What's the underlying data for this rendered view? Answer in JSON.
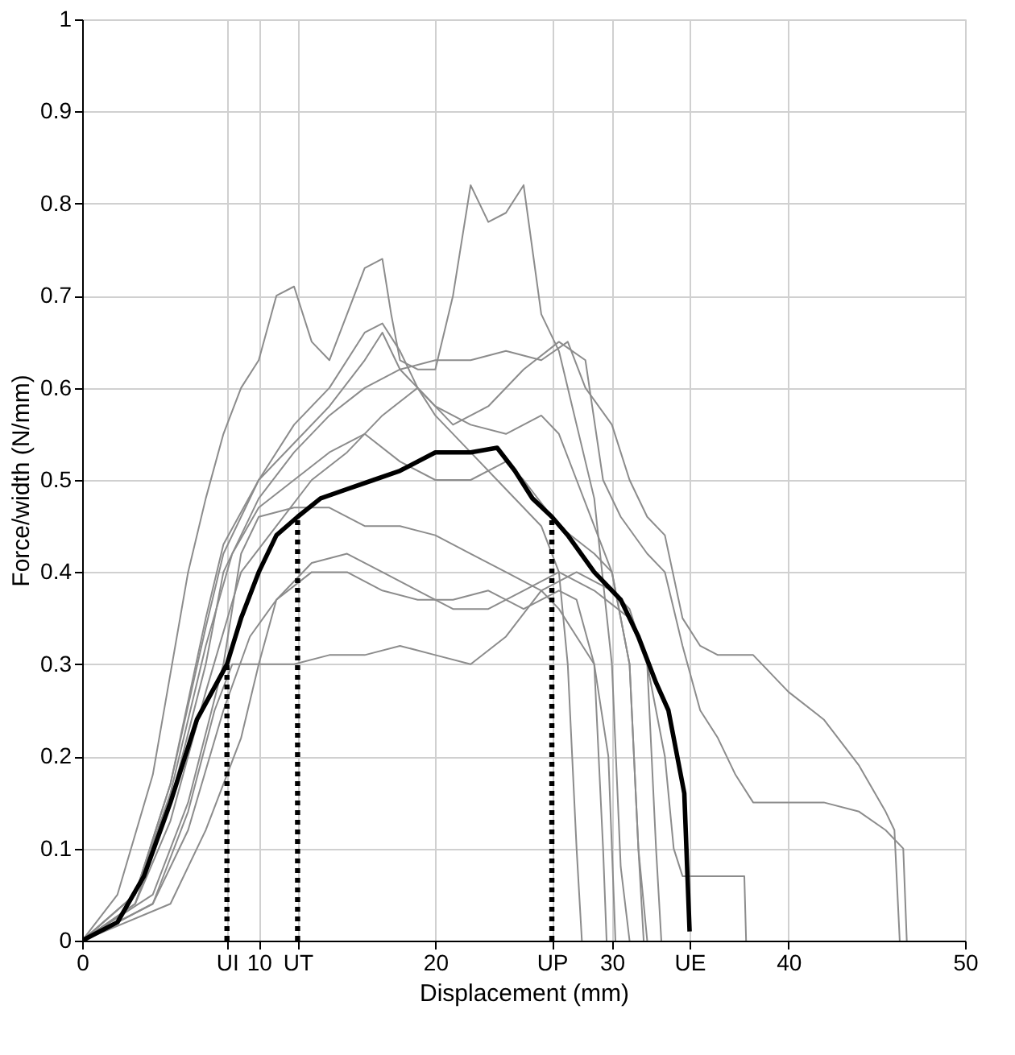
{
  "chart_data": {
    "type": "line",
    "xlabel": "Displacement (mm)",
    "ylabel": "Force/width (N/mm)",
    "xlim": [
      0,
      50
    ],
    "ylim": [
      0,
      1
    ],
    "xticks": [
      0,
      {
        "value": 8.2,
        "label": "UI"
      },
      10,
      {
        "value": 12.2,
        "label": "UT"
      },
      20,
      {
        "value": 26.6,
        "label": "UP"
      },
      30,
      {
        "value": 34.4,
        "label": "UE"
      },
      40,
      50
    ],
    "yticks": [
      0,
      0.1,
      0.2,
      0.3,
      0.4,
      0.5,
      0.6,
      0.7,
      0.8,
      0.9,
      1
    ],
    "grid": true,
    "line_style": "solid",
    "series": [
      {
        "color": "#8c8c8c",
        "x": [
          0,
          2,
          4,
          6,
          7,
          8,
          9,
          10,
          11,
          12,
          13,
          14,
          15,
          16,
          17,
          17.5,
          18,
          19,
          20,
          21,
          22,
          23,
          24,
          25,
          25.5,
          26,
          27,
          28,
          29,
          30,
          30.5,
          31
        ],
        "values": [
          0,
          0.05,
          0.18,
          0.4,
          0.48,
          0.55,
          0.6,
          0.63,
          0.7,
          0.71,
          0.65,
          0.63,
          0.68,
          0.73,
          0.74,
          0.68,
          0.63,
          0.62,
          0.62,
          0.7,
          0.82,
          0.78,
          0.79,
          0.82,
          0.75,
          0.68,
          0.64,
          0.56,
          0.48,
          0.3,
          0.08,
          0
        ]
      },
      {
        "color": "#8c8c8c",
        "x": [
          0,
          3,
          5,
          7,
          8,
          10,
          12,
          14,
          16,
          17,
          18,
          19,
          20,
          22,
          24,
          26,
          27,
          27.5,
          28,
          28.3
        ],
        "values": [
          0,
          0.05,
          0.17,
          0.34,
          0.42,
          0.5,
          0.56,
          0.6,
          0.66,
          0.67,
          0.64,
          0.6,
          0.57,
          0.53,
          0.49,
          0.45,
          0.4,
          0.3,
          0.1,
          0
        ]
      },
      {
        "color": "#8c8c8c",
        "x": [
          0,
          3,
          5,
          7,
          8,
          10,
          12,
          14,
          16,
          18,
          20,
          22,
          24,
          26,
          27.5,
          28.5,
          30,
          31,
          32,
          33,
          34,
          35,
          36,
          38,
          40,
          42,
          44,
          45.5,
          46,
          46.3
        ],
        "values": [
          0,
          0.04,
          0.15,
          0.3,
          0.4,
          0.48,
          0.53,
          0.57,
          0.6,
          0.62,
          0.63,
          0.63,
          0.64,
          0.63,
          0.65,
          0.6,
          0.56,
          0.5,
          0.46,
          0.44,
          0.35,
          0.32,
          0.31,
          0.31,
          0.27,
          0.24,
          0.19,
          0.14,
          0.12,
          0
        ]
      },
      {
        "color": "#8c8c8c",
        "x": [
          0,
          3,
          5,
          7,
          9,
          11,
          13,
          15,
          17,
          19,
          21,
          23,
          25,
          27,
          28.5,
          29.5,
          30.5,
          32,
          33,
          34,
          35,
          36,
          37,
          38,
          40,
          42,
          44,
          45.5,
          46.5,
          46.7
        ],
        "values": [
          0,
          0.04,
          0.13,
          0.27,
          0.4,
          0.45,
          0.5,
          0.53,
          0.57,
          0.6,
          0.56,
          0.58,
          0.62,
          0.65,
          0.63,
          0.5,
          0.46,
          0.42,
          0.4,
          0.32,
          0.25,
          0.22,
          0.18,
          0.15,
          0.15,
          0.15,
          0.14,
          0.12,
          0.1,
          0
        ]
      },
      {
        "color": "#8c8c8c",
        "x": [
          0,
          3,
          5,
          7,
          8.5,
          10,
          12,
          14,
          16,
          18,
          20,
          22,
          24,
          25,
          27,
          29,
          30,
          31,
          31.5,
          32
        ],
        "values": [
          0,
          0.05,
          0.16,
          0.32,
          0.42,
          0.47,
          0.5,
          0.53,
          0.55,
          0.52,
          0.5,
          0.5,
          0.52,
          0.5,
          0.45,
          0.42,
          0.4,
          0.3,
          0.1,
          0
        ]
      },
      {
        "color": "#8c8c8c",
        "x": [
          0,
          4,
          6,
          8,
          9,
          10,
          12,
          14,
          16,
          18,
          20,
          22,
          24,
          26,
          27,
          28,
          29,
          29.8,
          30.2
        ],
        "values": [
          0,
          0.05,
          0.15,
          0.3,
          0.42,
          0.46,
          0.47,
          0.47,
          0.45,
          0.45,
          0.44,
          0.42,
          0.4,
          0.38,
          0.36,
          0.33,
          0.3,
          0.2,
          0
        ]
      },
      {
        "color": "#8c8c8c",
        "x": [
          0,
          4,
          6,
          8,
          9.5,
          11,
          13,
          15,
          17,
          19,
          21,
          23,
          25,
          27,
          28,
          29,
          29.5,
          29.7
        ],
        "values": [
          0,
          0.04,
          0.12,
          0.25,
          0.33,
          0.37,
          0.4,
          0.4,
          0.38,
          0.37,
          0.37,
          0.38,
          0.36,
          0.38,
          0.37,
          0.3,
          0.1,
          0
        ]
      },
      {
        "color": "#8c8c8c",
        "x": [
          0,
          4,
          6,
          7.5,
          8.5,
          10,
          12,
          14,
          16,
          18,
          20,
          22,
          24,
          26,
          28,
          30,
          31,
          32,
          32.5,
          32.8
        ],
        "values": [
          0,
          0.04,
          0.14,
          0.25,
          0.3,
          0.3,
          0.3,
          0.31,
          0.31,
          0.32,
          0.31,
          0.3,
          0.33,
          0.38,
          0.4,
          0.38,
          0.36,
          0.3,
          0.1,
          0
        ]
      },
      {
        "color": "#8c8c8c",
        "x": [
          0,
          5,
          7,
          9,
          10,
          11,
          13,
          15,
          17,
          19,
          21,
          23,
          25,
          27,
          29,
          31,
          32,
          33,
          33.5,
          34,
          36,
          37.5,
          37.6
        ],
        "values": [
          0,
          0.04,
          0.12,
          0.22,
          0.3,
          0.37,
          0.41,
          0.42,
          0.4,
          0.38,
          0.36,
          0.36,
          0.38,
          0.4,
          0.38,
          0.35,
          0.3,
          0.2,
          0.1,
          0.07,
          0.07,
          0.07,
          0
        ]
      },
      {
        "color": "#8c8c8c",
        "x": [
          0,
          3,
          5,
          7,
          8,
          10,
          12,
          14,
          16,
          17,
          18,
          20,
          22,
          24,
          26,
          27,
          28,
          29,
          30,
          31,
          31.5,
          31.8
        ],
        "values": [
          0,
          0.05,
          0.17,
          0.35,
          0.43,
          0.5,
          0.54,
          0.58,
          0.63,
          0.66,
          0.62,
          0.58,
          0.56,
          0.55,
          0.57,
          0.55,
          0.5,
          0.45,
          0.4,
          0.3,
          0.1,
          0
        ]
      },
      {
        "color": "#000000",
        "x": [
          0,
          2,
          3.5,
          5,
          6.5,
          8.2,
          9,
          10,
          11,
          12.2,
          13.5,
          15,
          16.5,
          18,
          20,
          22,
          23.5,
          24.5,
          25.5,
          26.6,
          27.5,
          29,
          30.5,
          31.5,
          32.5,
          33.2,
          34.1,
          34.4
        ],
        "values": [
          0,
          0.02,
          0.07,
          0.15,
          0.24,
          0.3,
          0.35,
          0.4,
          0.44,
          0.46,
          0.48,
          0.49,
          0.5,
          0.51,
          0.53,
          0.53,
          0.535,
          0.51,
          0.48,
          0.46,
          0.44,
          0.4,
          0.37,
          0.33,
          0.28,
          0.25,
          0.16,
          0.01
        ]
      },
      {
        "color": "#000000",
        "line_style": "dotted",
        "x": [
          8.2,
          8.2
        ],
        "values": [
          0,
          0.3
        ]
      },
      {
        "color": "#000000",
        "line_style": "dotted",
        "x": [
          12.2,
          12.2
        ],
        "values": [
          0,
          0.46
        ]
      },
      {
        "color": "#000000",
        "line_style": "dotted",
        "x": [
          26.6,
          26.6
        ],
        "values": [
          0,
          0.46
        ]
      }
    ]
  }
}
